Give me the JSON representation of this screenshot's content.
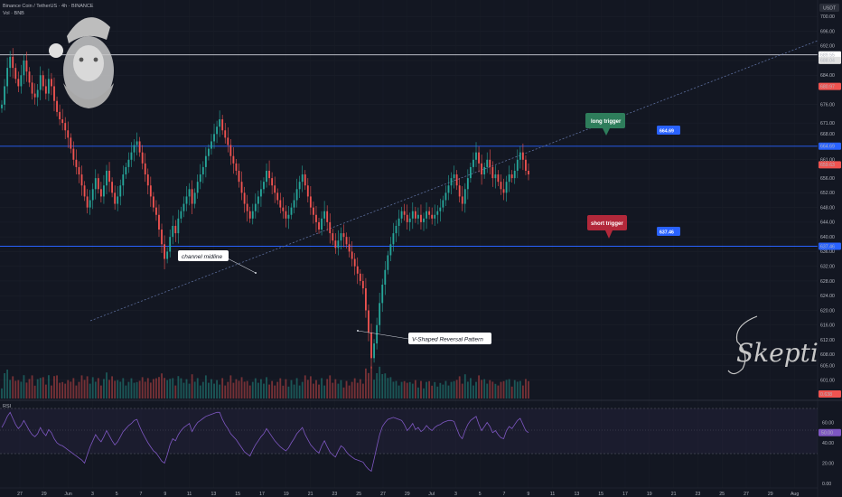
{
  "header": {
    "symbol_line": "Binance Coin / TetherUS · 4h · BINANCE",
    "volume_line": "Vol · BNB",
    "rsi_label": "RSI"
  },
  "currency_label": "USDT",
  "signature": "Skeptic",
  "annotations": {
    "channel_midline": "channel midline",
    "v_shape": "V-Shaped Reversal Pattern",
    "long_trigger": "long trigger",
    "short_trigger": "short trigger",
    "long_level_tag": "664.69",
    "short_level_tag": "637.46"
  },
  "colors": {
    "background": "#131722",
    "up": "#26a69a",
    "down": "#ef5350",
    "level_line": "#2962ff",
    "rsi_line": "#7e57c2",
    "long_bubble": "#2e7d5b",
    "short_bubble": "#b2283a"
  },
  "chart_data": {
    "type": "candlestick",
    "title": "Binance Coin / TetherUS · 4h · BINANCE",
    "x_tick_labels": [
      "27",
      "29",
      "Jun",
      "3",
      "5",
      "7",
      "9",
      "11",
      "13",
      "15",
      "17",
      "19",
      "21",
      "23",
      "25",
      "27",
      "29",
      "Jul",
      "3",
      "5",
      "7",
      "9",
      "11",
      "13",
      "15",
      "17",
      "19",
      "21",
      "23",
      "25",
      "27",
      "29",
      "Aug"
    ],
    "y_tick_labels": [
      "700.00",
      "696.00",
      "692.00",
      "688.00",
      "684.00",
      "676.00",
      "671.00",
      "668.00",
      "661.00",
      "656.00",
      "652.00",
      "648.00",
      "644.00",
      "640.00",
      "636.00",
      "632.00",
      "628.00",
      "624.00",
      "620.00",
      "616.00",
      "612.00",
      "608.00",
      "605.00",
      "601.00"
    ],
    "ylim": [
      597,
      703
    ],
    "price_tags": [
      {
        "label": "689.55",
        "value": 689.55,
        "color": "#ffffff"
      },
      {
        "label": "688.04",
        "value": 688.04,
        "color": "#e0e0e0"
      },
      {
        "label": "680.97",
        "value": 680.97,
        "color": "#ef5350"
      },
      {
        "label": "664.69",
        "value": 664.69,
        "color": "#2962ff"
      },
      {
        "label": "659.63",
        "value": 659.63,
        "color": "#ef5350"
      },
      {
        "label": "637.46",
        "value": 637.46,
        "color": "#2962ff"
      },
      {
        "label": "0.638",
        "value": 599.5,
        "color": "#ef5350"
      }
    ],
    "horizontal_levels": [
      {
        "value": 689.55,
        "color": "#d1d4dc"
      },
      {
        "value": 664.69,
        "color": "#2962ff"
      },
      {
        "value": 637.46,
        "color": "#2962ff"
      }
    ],
    "close": [
      676,
      681,
      686,
      689,
      686,
      683,
      681,
      684,
      688,
      685,
      682,
      679,
      678,
      680,
      684,
      681,
      679,
      683,
      681,
      677,
      674,
      672,
      671,
      669,
      667,
      664,
      661,
      659,
      657,
      654,
      651,
      648,
      650,
      653,
      656,
      653,
      651,
      654,
      658,
      655,
      652,
      649,
      651,
      654,
      657,
      659,
      661,
      663,
      665,
      666,
      663,
      660,
      657,
      654,
      651,
      648,
      646,
      642,
      638,
      634,
      636,
      640,
      643,
      641,
      645,
      647,
      649,
      651,
      653,
      649,
      652,
      655,
      657,
      659,
      662,
      664,
      666,
      668,
      670,
      672,
      669,
      667,
      665,
      662,
      660,
      658,
      655,
      652,
      649,
      647,
      645,
      647,
      649,
      651,
      653,
      655,
      658,
      656,
      654,
      652,
      650,
      648,
      647,
      645,
      646,
      648,
      650,
      653,
      655,
      657,
      654,
      651,
      648,
      646,
      644,
      642,
      645,
      647,
      644,
      641,
      639,
      637,
      639,
      641,
      640,
      638,
      636,
      634,
      632,
      630,
      628,
      626,
      620,
      614,
      607,
      611,
      616,
      622,
      627,
      631,
      635,
      638,
      641,
      643,
      645,
      647,
      646,
      644,
      645,
      647,
      645,
      646,
      644,
      645,
      647,
      646,
      645,
      646,
      647,
      648,
      650,
      652,
      654,
      656,
      657,
      654,
      651,
      649,
      653,
      656,
      659,
      661,
      663,
      660,
      657,
      659,
      661,
      659,
      656,
      657,
      655,
      653,
      652,
      655,
      657,
      656,
      658,
      661,
      663,
      661,
      658,
      657
    ],
    "rsi_ylim": [
      0,
      80
    ],
    "rsi_ticks": [
      "60.00",
      "50.00",
      "40.00",
      "20.00",
      "0.00"
    ],
    "rsi_current": "50.00",
    "rsi": [
      55,
      60,
      66,
      70,
      64,
      58,
      54,
      57,
      62,
      57,
      52,
      48,
      46,
      49,
      55,
      50,
      47,
      53,
      50,
      44,
      40,
      38,
      37,
      35,
      33,
      31,
      29,
      27,
      25,
      23,
      20,
      28,
      36,
      42,
      48,
      44,
      41,
      46,
      52,
      47,
      42,
      38,
      41,
      46,
      51,
      54,
      57,
      59,
      62,
      63,
      56,
      50,
      45,
      40,
      36,
      32,
      30,
      26,
      22,
      20,
      28,
      38,
      44,
      42,
      48,
      52,
      55,
      57,
      59,
      51,
      56,
      60,
      62,
      64,
      66,
      67,
      68,
      69,
      70,
      70,
      63,
      58,
      54,
      49,
      46,
      43,
      39,
      35,
      31,
      29,
      27,
      33,
      38,
      42,
      46,
      49,
      54,
      50,
      46,
      42,
      39,
      36,
      34,
      32,
      35,
      40,
      44,
      49,
      52,
      55,
      48,
      43,
      38,
      35,
      32,
      30,
      37,
      42,
      36,
      31,
      28,
      26,
      32,
      37,
      35,
      31,
      28,
      26,
      24,
      23,
      22,
      21,
      17,
      14,
      12,
      24,
      36,
      48,
      56,
      60,
      63,
      64,
      65,
      64,
      63,
      62,
      58,
      52,
      55,
      59,
      53,
      55,
      51,
      53,
      57,
      54,
      52,
      55,
      57,
      58,
      60,
      61,
      62,
      62,
      61,
      54,
      47,
      44,
      52,
      58,
      62,
      64,
      66,
      58,
      52,
      56,
      60,
      56,
      50,
      52,
      48,
      45,
      44,
      52,
      56,
      54,
      58,
      62,
      64,
      58,
      52,
      50
    ]
  }
}
